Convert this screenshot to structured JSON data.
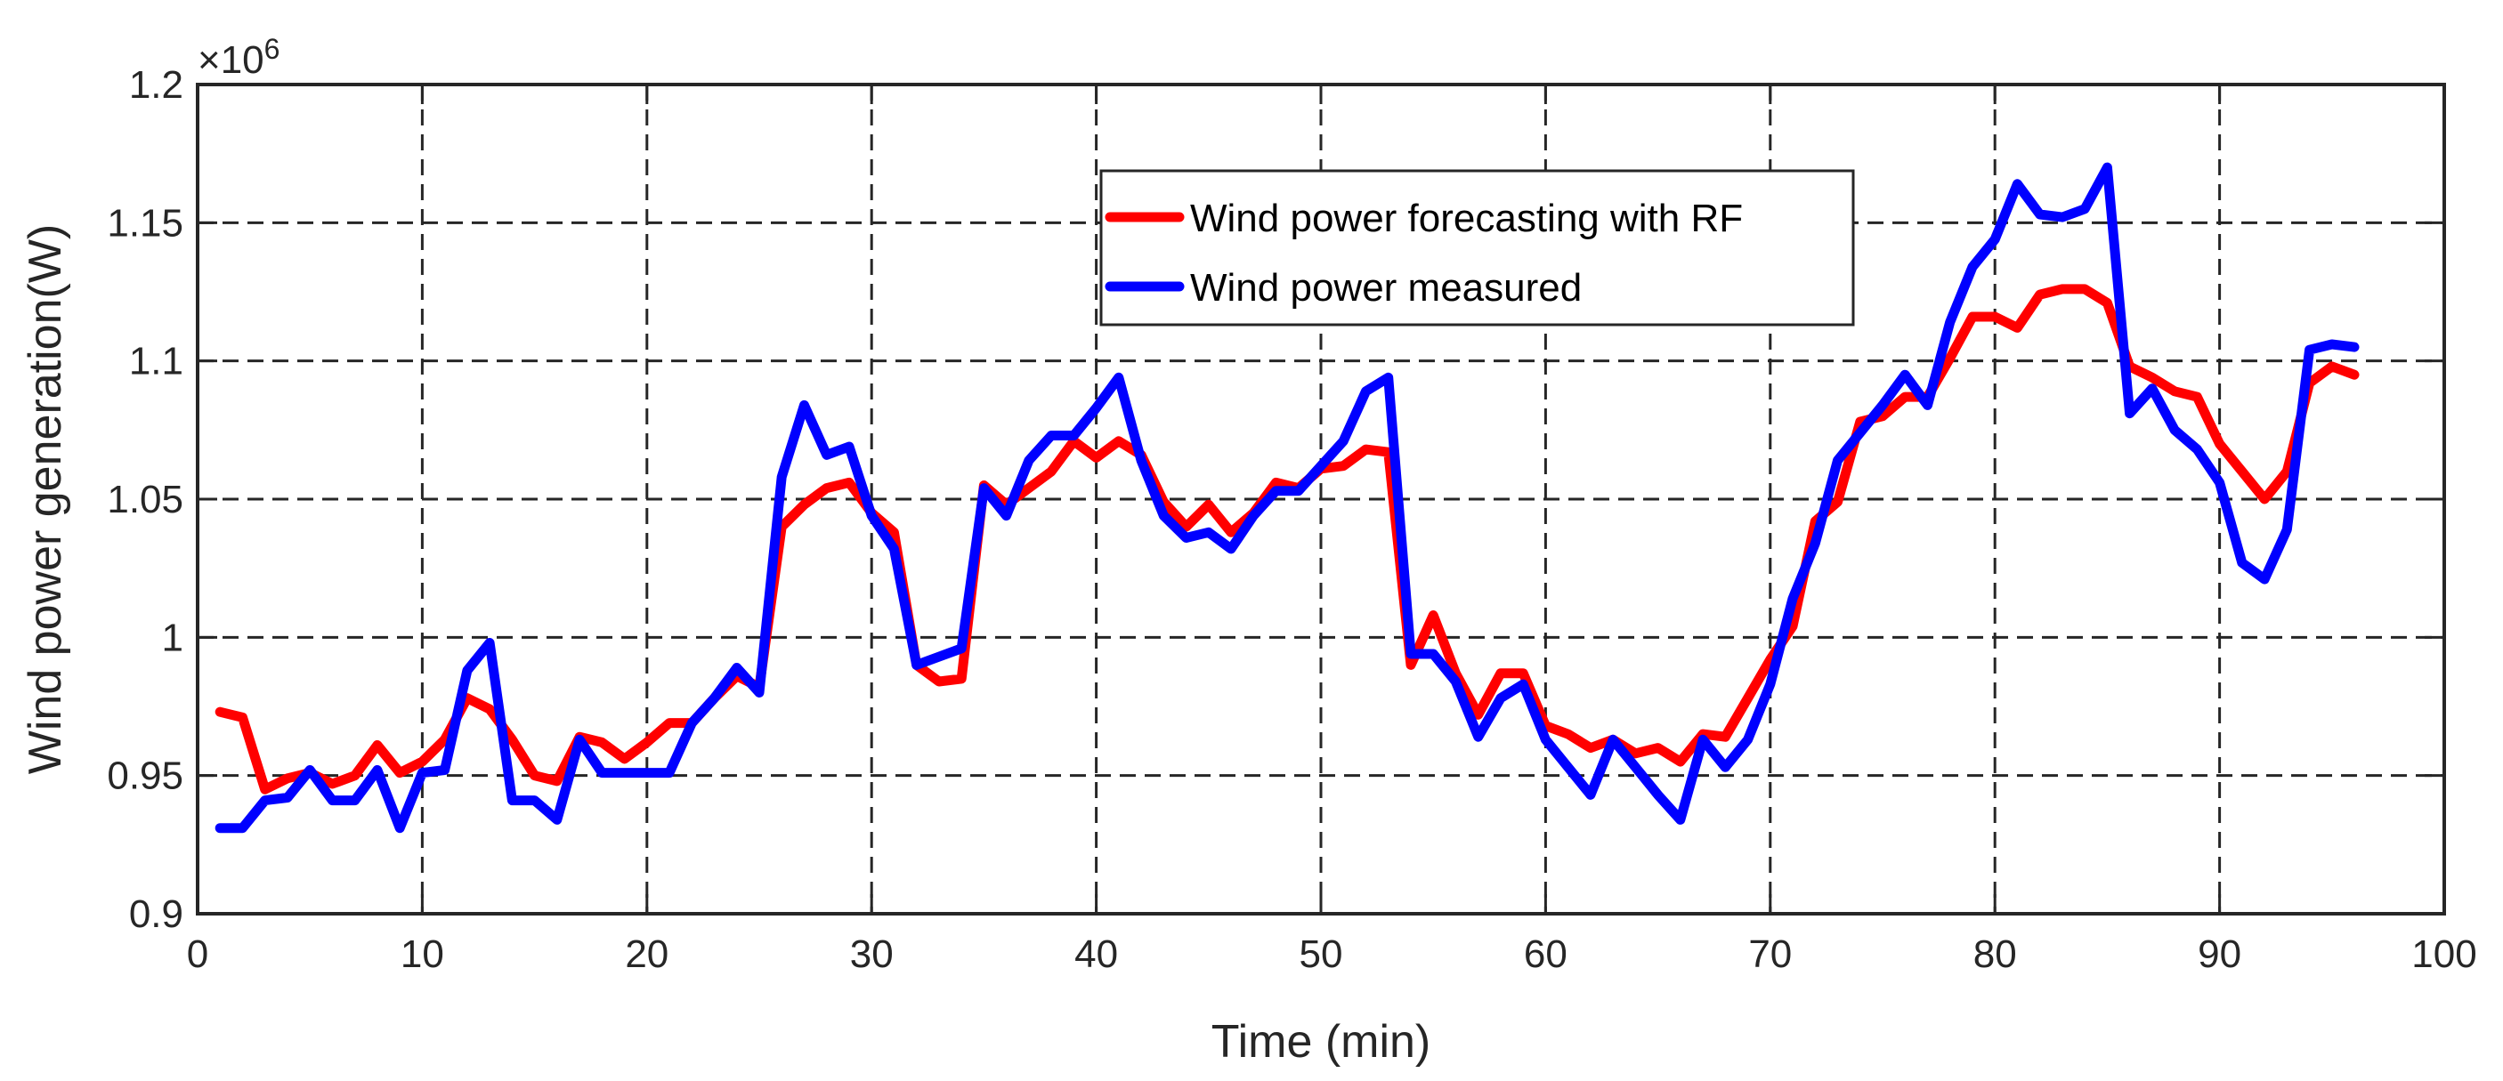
{
  "chart_data": {
    "type": "line",
    "title": "",
    "xlabel": "Time (min)",
    "ylabel": "Wind power generation(W)",
    "y_exponent_label": "×10",
    "y_exponent_power": "6",
    "xlim": [
      0,
      100
    ],
    "ylim": [
      0.9,
      1.2
    ],
    "x_ticks": [
      0,
      10,
      20,
      30,
      40,
      50,
      60,
      70,
      80,
      90,
      100
    ],
    "x_tick_labels": [
      "0",
      "10",
      "20",
      "30",
      "40",
      "50",
      "60",
      "70",
      "80",
      "90",
      "100"
    ],
    "y_ticks": [
      0.9,
      0.95,
      1.0,
      1.05,
      1.1,
      1.15,
      1.2
    ],
    "y_tick_labels": [
      "0.9",
      "0.95",
      "1",
      "1.05",
      "1.1",
      "1.15",
      "1.2"
    ],
    "grid": true,
    "legend_position": "top-center",
    "x": [
      1,
      2,
      3,
      4,
      5,
      6,
      7,
      8,
      9,
      10,
      11,
      12,
      13,
      14,
      15,
      16,
      17,
      18,
      19,
      20,
      21,
      22,
      23,
      24,
      25,
      26,
      27,
      28,
      29,
      30,
      31,
      32,
      33,
      34,
      35,
      36,
      37,
      38,
      39,
      40,
      41,
      42,
      43,
      44,
      45,
      46,
      47,
      48,
      49,
      50,
      51,
      52,
      53,
      54,
      55,
      56,
      57,
      58,
      59,
      60,
      61,
      62,
      63,
      64,
      65,
      66,
      67,
      68,
      69,
      70,
      71,
      72,
      73,
      74,
      75,
      76,
      77,
      78,
      79,
      80,
      81,
      82,
      83,
      84,
      85,
      86,
      87,
      88,
      89,
      90,
      91,
      92,
      93,
      94,
      95,
      96
    ],
    "series": [
      {
        "name": "Wind power forecasting with RF",
        "color": "#ff0000",
        "values": [
          0.973,
          0.971,
          0.945,
          0.949,
          0.951,
          0.947,
          0.95,
          0.961,
          0.951,
          0.955,
          0.963,
          0.978,
          0.974,
          0.963,
          0.95,
          0.948,
          0.964,
          0.962,
          0.956,
          0.962,
          0.969,
          0.969,
          0.978,
          0.986,
          0.982,
          1.04,
          1.048,
          1.054,
          1.056,
          1.045,
          1.038,
          0.99,
          0.984,
          0.985,
          1.055,
          1.048,
          1.054,
          1.06,
          1.071,
          1.065,
          1.071,
          1.066,
          1.049,
          1.04,
          1.048,
          1.038,
          1.045,
          1.056,
          1.054,
          1.061,
          1.062,
          1.068,
          1.067,
          0.99,
          1.008,
          0.987,
          0.972,
          0.987,
          0.987,
          0.968,
          0.965,
          0.96,
          0.963,
          0.958,
          0.96,
          0.955,
          0.965,
          0.964,
          0.978,
          0.992,
          1.004,
          1.042,
          1.049,
          1.078,
          1.08,
          1.087,
          1.087,
          1.101,
          1.116,
          1.116,
          1.112,
          1.124,
          1.126,
          1.126,
          1.121,
          1.098,
          1.094,
          1.089,
          1.087,
          1.07,
          1.06,
          1.05,
          1.06,
          1.092,
          1.098,
          1.095
        ]
      },
      {
        "name": "Wind power measured",
        "color": "#0000ff",
        "values": [
          0.931,
          0.931,
          0.941,
          0.942,
          0.952,
          0.941,
          0.941,
          0.952,
          0.931,
          0.951,
          0.952,
          0.988,
          0.998,
          0.941,
          0.941,
          0.934,
          0.963,
          0.951,
          0.951,
          0.951,
          0.951,
          0.969,
          0.978,
          0.989,
          0.98,
          1.058,
          1.084,
          1.066,
          1.069,
          1.044,
          1.032,
          0.99,
          0.993,
          0.996,
          1.054,
          1.044,
          1.064,
          1.073,
          1.073,
          1.083,
          1.094,
          1.064,
          1.044,
          1.036,
          1.038,
          1.032,
          1.044,
          1.053,
          1.053,
          1.062,
          1.071,
          1.089,
          1.094,
          0.994,
          0.994,
          0.984,
          0.964,
          0.978,
          0.983,
          0.963,
          0.953,
          0.943,
          0.963,
          0.953,
          0.943,
          0.934,
          0.963,
          0.953,
          0.963,
          0.983,
          1.014,
          1.034,
          1.064,
          1.074,
          1.084,
          1.095,
          1.084,
          1.114,
          1.134,
          1.144,
          1.164,
          1.153,
          1.152,
          1.155,
          1.17,
          1.081,
          1.09,
          1.075,
          1.068,
          1.056,
          1.027,
          1.021,
          1.039,
          1.104,
          1.106,
          1.105
        ]
      }
    ]
  }
}
